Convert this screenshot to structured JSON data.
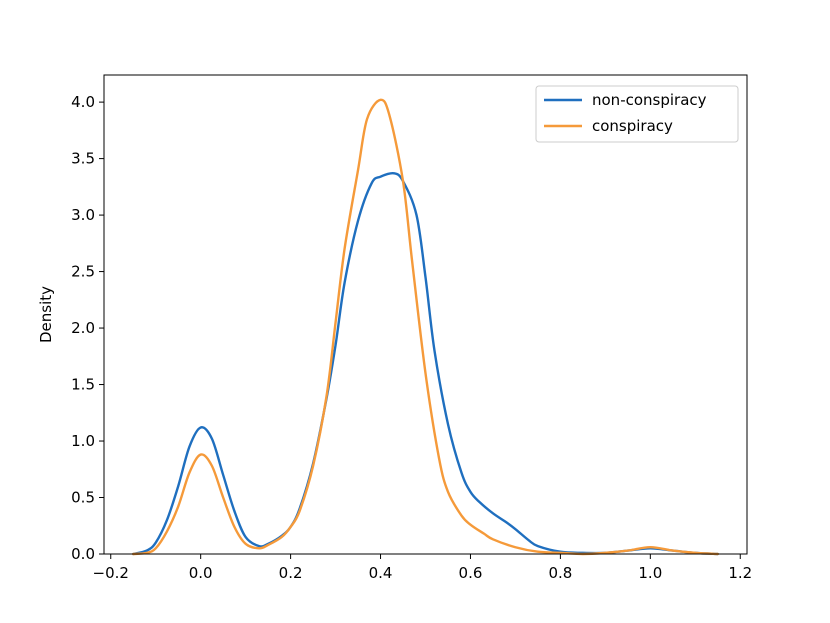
{
  "chart_data": {
    "type": "line",
    "title": "",
    "xlabel": "",
    "ylabel": "Density",
    "xlim": [
      -0.215,
      1.215
    ],
    "ylim": [
      0.0,
      4.24
    ],
    "grid": false,
    "legend_position": "top-right",
    "x_ticks": [
      "−0.2",
      "0.0",
      "0.2",
      "0.4",
      "0.6",
      "0.8",
      "1.0",
      "1.2"
    ],
    "x_tick_values": [
      -0.2,
      0.0,
      0.2,
      0.4,
      0.6,
      0.8,
      1.0,
      1.2
    ],
    "y_ticks": [
      "0.0",
      "0.5",
      "1.0",
      "1.5",
      "2.0",
      "2.5",
      "3.0",
      "3.5",
      "4.0"
    ],
    "y_tick_values": [
      0.0,
      0.5,
      1.0,
      1.5,
      2.0,
      2.5,
      3.0,
      3.5,
      4.0
    ],
    "series": [
      {
        "name": "non-conspiracy",
        "color": "#1f6fbf",
        "points": [
          [
            -0.15,
            0.0
          ],
          [
            -0.12,
            0.03
          ],
          [
            -0.1,
            0.1
          ],
          [
            -0.075,
            0.3
          ],
          [
            -0.05,
            0.6
          ],
          [
            -0.025,
            0.95
          ],
          [
            0.0,
            1.12
          ],
          [
            0.025,
            1.02
          ],
          [
            0.05,
            0.7
          ],
          [
            0.075,
            0.38
          ],
          [
            0.1,
            0.15
          ],
          [
            0.13,
            0.07
          ],
          [
            0.15,
            0.09
          ],
          [
            0.18,
            0.16
          ],
          [
            0.2,
            0.24
          ],
          [
            0.22,
            0.4
          ],
          [
            0.25,
            0.8
          ],
          [
            0.28,
            1.38
          ],
          [
            0.3,
            1.85
          ],
          [
            0.32,
            2.4
          ],
          [
            0.35,
            2.95
          ],
          [
            0.38,
            3.28
          ],
          [
            0.4,
            3.34
          ],
          [
            0.43,
            3.37
          ],
          [
            0.45,
            3.3
          ],
          [
            0.48,
            3.0
          ],
          [
            0.5,
            2.45
          ],
          [
            0.52,
            1.8
          ],
          [
            0.55,
            1.15
          ],
          [
            0.58,
            0.72
          ],
          [
            0.6,
            0.55
          ],
          [
            0.62,
            0.46
          ],
          [
            0.65,
            0.36
          ],
          [
            0.68,
            0.28
          ],
          [
            0.7,
            0.22
          ],
          [
            0.73,
            0.12
          ],
          [
            0.75,
            0.07
          ],
          [
            0.8,
            0.02
          ],
          [
            0.85,
            0.01
          ],
          [
            0.9,
            0.01
          ],
          [
            0.95,
            0.03
          ],
          [
            1.0,
            0.05
          ],
          [
            1.05,
            0.03
          ],
          [
            1.1,
            0.01
          ],
          [
            1.15,
            0.0
          ]
        ]
      },
      {
        "name": "conspiracy",
        "color": "#f59a3a",
        "points": [
          [
            -0.15,
            0.0
          ],
          [
            -0.12,
            0.01
          ],
          [
            -0.1,
            0.05
          ],
          [
            -0.075,
            0.2
          ],
          [
            -0.05,
            0.42
          ],
          [
            -0.025,
            0.72
          ],
          [
            0.0,
            0.88
          ],
          [
            0.025,
            0.78
          ],
          [
            0.05,
            0.5
          ],
          [
            0.075,
            0.24
          ],
          [
            0.1,
            0.09
          ],
          [
            0.13,
            0.05
          ],
          [
            0.15,
            0.08
          ],
          [
            0.18,
            0.15
          ],
          [
            0.2,
            0.24
          ],
          [
            0.22,
            0.38
          ],
          [
            0.25,
            0.78
          ],
          [
            0.28,
            1.4
          ],
          [
            0.3,
            2.05
          ],
          [
            0.32,
            2.7
          ],
          [
            0.35,
            3.4
          ],
          [
            0.37,
            3.85
          ],
          [
            0.4,
            4.02
          ],
          [
            0.42,
            3.88
          ],
          [
            0.45,
            3.3
          ],
          [
            0.47,
            2.6
          ],
          [
            0.5,
            1.6
          ],
          [
            0.53,
            0.85
          ],
          [
            0.55,
            0.55
          ],
          [
            0.58,
            0.34
          ],
          [
            0.6,
            0.26
          ],
          [
            0.63,
            0.18
          ],
          [
            0.65,
            0.13
          ],
          [
            0.7,
            0.06
          ],
          [
            0.75,
            0.02
          ],
          [
            0.8,
            0.01
          ],
          [
            0.85,
            0.0
          ],
          [
            0.9,
            0.01
          ],
          [
            0.95,
            0.03
          ],
          [
            1.0,
            0.06
          ],
          [
            1.05,
            0.03
          ],
          [
            1.1,
            0.01
          ],
          [
            1.15,
            0.0
          ]
        ]
      }
    ]
  }
}
